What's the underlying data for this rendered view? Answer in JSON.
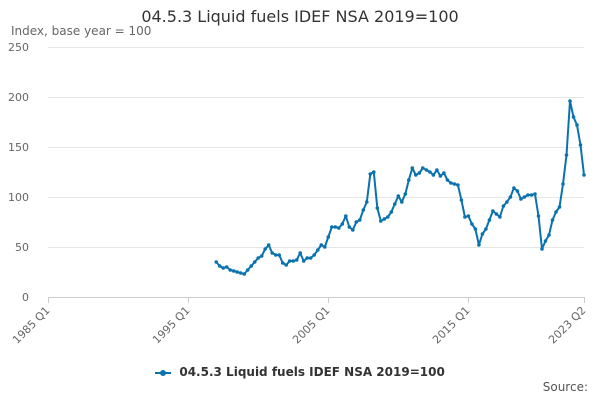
{
  "chart_data": {
    "type": "line",
    "title": "04.5.3 Liquid fuels IDEF NSA 2019=100",
    "ylabel": "Index, base year = 100",
    "xlabel": "",
    "ylim": [
      0,
      250
    ],
    "yticks": [
      "0",
      "50",
      "100",
      "150",
      "200",
      "250"
    ],
    "xlim": [
      "1985 Q1",
      "2023 Q2"
    ],
    "xticks": [
      "1985 Q1",
      "1995 Q1",
      "2005 Q1",
      "2015 Q1",
      "2023 Q2"
    ],
    "grid": "horizontal",
    "legend": "bottom",
    "color": "#0a72ae",
    "series": [
      {
        "name": "04.5.3 Liquid fuels IDEF NSA 2019=100",
        "x": [
          "1997 Q1",
          "1997 Q2",
          "1997 Q3",
          "1997 Q4",
          "1998 Q1",
          "1998 Q2",
          "1998 Q3",
          "1998 Q4",
          "1999 Q1",
          "1999 Q2",
          "1999 Q3",
          "1999 Q4",
          "2000 Q1",
          "2000 Q2",
          "2000 Q3",
          "2000 Q4",
          "2001 Q1",
          "2001 Q2",
          "2001 Q3",
          "2001 Q4",
          "2002 Q1",
          "2002 Q2",
          "2002 Q3",
          "2002 Q4",
          "2003 Q1",
          "2003 Q2",
          "2003 Q3",
          "2003 Q4",
          "2004 Q1",
          "2004 Q2",
          "2004 Q3",
          "2004 Q4",
          "2005 Q1",
          "2005 Q2",
          "2005 Q3",
          "2005 Q4",
          "2006 Q1",
          "2006 Q2",
          "2006 Q3",
          "2006 Q4",
          "2007 Q1",
          "2007 Q2",
          "2007 Q3",
          "2007 Q4",
          "2008 Q1",
          "2008 Q2",
          "2008 Q3",
          "2008 Q4",
          "2009 Q1",
          "2009 Q2",
          "2009 Q3",
          "2009 Q4",
          "2010 Q1",
          "2010 Q2",
          "2010 Q3",
          "2010 Q4",
          "2011 Q1",
          "2011 Q2",
          "2011 Q3",
          "2011 Q4",
          "2012 Q1",
          "2012 Q2",
          "2012 Q3",
          "2012 Q4",
          "2013 Q1",
          "2013 Q2",
          "2013 Q3",
          "2013 Q4",
          "2014 Q1",
          "2014 Q2",
          "2014 Q3",
          "2014 Q4",
          "2015 Q1",
          "2015 Q2",
          "2015 Q3",
          "2015 Q4",
          "2016 Q1",
          "2016 Q2",
          "2016 Q3",
          "2016 Q4",
          "2017 Q1",
          "2017 Q2",
          "2017 Q3",
          "2017 Q4",
          "2018 Q1",
          "2018 Q2",
          "2018 Q3",
          "2018 Q4",
          "2019 Q1",
          "2019 Q2",
          "2019 Q3",
          "2019 Q4",
          "2020 Q1",
          "2020 Q2",
          "2020 Q3",
          "2020 Q4",
          "2021 Q1",
          "2021 Q2",
          "2021 Q3",
          "2021 Q4",
          "2022 Q1",
          "2022 Q2",
          "2022 Q3",
          "2022 Q4",
          "2023 Q1",
          "2023 Q2"
        ],
        "values": [
          35,
          31,
          29,
          30,
          27,
          26,
          25,
          24,
          23,
          27,
          31,
          35,
          39,
          41,
          48,
          52,
          44,
          42,
          42,
          34,
          32,
          36,
          36,
          37,
          44,
          36,
          39,
          39,
          42,
          47,
          52,
          50,
          60,
          70,
          70,
          69,
          73,
          81,
          70,
          67,
          75,
          77,
          87,
          95,
          123,
          125,
          89,
          76,
          78,
          80,
          85,
          93,
          101,
          95,
          103,
          117,
          129,
          122,
          124,
          129,
          127,
          125,
          122,
          127,
          121,
          124,
          117,
          114,
          113,
          112,
          97,
          80,
          81,
          73,
          68,
          52,
          63,
          68,
          77,
          86,
          83,
          80,
          91,
          95,
          100,
          109,
          106,
          98,
          100,
          102,
          102,
          103,
          81,
          48,
          56,
          62,
          77,
          85,
          90,
          113,
          142,
          196,
          180,
          172,
          152,
          122
        ]
      }
    ],
    "source_label": "Source:"
  }
}
